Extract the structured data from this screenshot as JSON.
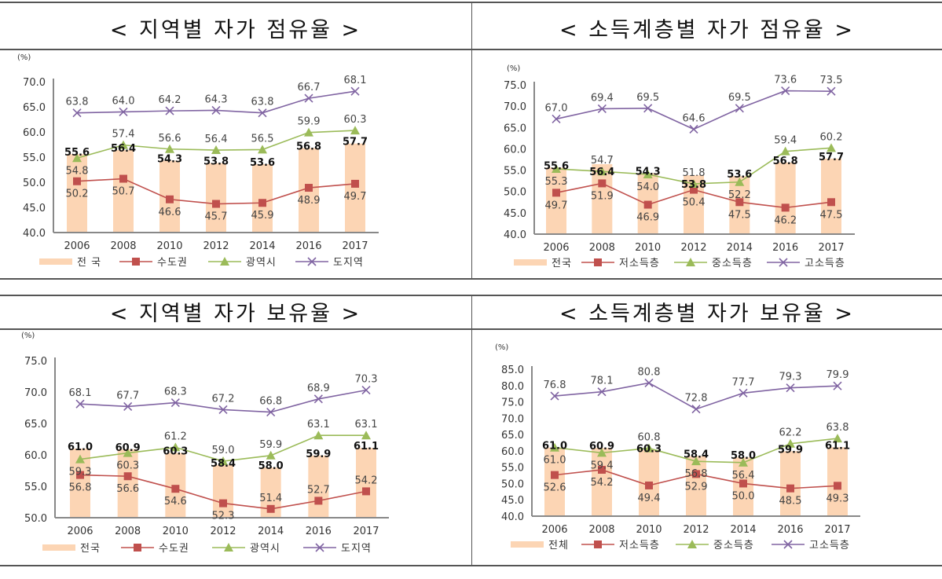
{
  "titles": [
    "< 지역별 자가 점유율 >",
    "< 소득계층별 자가 점유율 >",
    "< 지역별 자가 보유율 >",
    "< 소득계층별 자가 보유율 >"
  ],
  "colors": {
    "bar": "#fcd5b4",
    "red": "#c0504d",
    "green": "#9bbb59",
    "purple": "#8064a2",
    "axis": "#888888"
  },
  "chart_data": [
    {
      "type": "bar+line",
      "title": "< 지역별 자가 점유율 >",
      "ylabel": "(%)",
      "ylim": [
        40,
        70
      ],
      "yticks": [
        "40.0",
        "45.0",
        "50.0",
        "55.0",
        "60.0",
        "65.0",
        "70.0"
      ],
      "categories": [
        "2006",
        "2008",
        "2010",
        "2012",
        "2014",
        "2016",
        "2017"
      ],
      "series": [
        {
          "name": "전 국",
          "kind": "bar",
          "values": [
            55.6,
            56.4,
            54.3,
            53.8,
            53.6,
            56.8,
            57.7
          ]
        },
        {
          "name": "수도권",
          "kind": "line",
          "marker": "square",
          "values": [
            50.2,
            50.7,
            46.6,
            45.7,
            45.9,
            48.9,
            49.7
          ]
        },
        {
          "name": "광역시",
          "kind": "line",
          "marker": "triangle",
          "values": [
            54.8,
            57.4,
            56.6,
            56.4,
            56.5,
            59.9,
            60.3
          ]
        },
        {
          "name": "도지역",
          "kind": "line",
          "marker": "x",
          "values": [
            63.8,
            64.0,
            64.2,
            64.3,
            63.8,
            66.7,
            68.1
          ]
        }
      ],
      "legend": "bottom"
    },
    {
      "type": "bar+line",
      "title": "< 소득계층별 자가 점유율 >",
      "ylabel": "(%)",
      "ylim": [
        40,
        75
      ],
      "yticks": [
        "40.0",
        "45.0",
        "50.0",
        "55.0",
        "60.0",
        "65.0",
        "70.0",
        "75.0"
      ],
      "categories": [
        "2006",
        "2008",
        "2010",
        "2012",
        "2014",
        "2016",
        "2017"
      ],
      "series": [
        {
          "name": "전국",
          "kind": "bar",
          "values": [
            55.6,
            56.4,
            54.3,
            53.8,
            53.6,
            56.8,
            57.7
          ]
        },
        {
          "name": "저소득층",
          "kind": "line",
          "marker": "square",
          "values": [
            49.7,
            51.9,
            46.9,
            50.4,
            47.5,
            46.2,
            47.5
          ]
        },
        {
          "name": "중소득층",
          "kind": "line",
          "marker": "triangle",
          "values": [
            55.3,
            54.7,
            54.0,
            51.8,
            52.2,
            59.4,
            60.2
          ]
        },
        {
          "name": "고소득층",
          "kind": "line",
          "marker": "x",
          "values": [
            67.0,
            69.4,
            69.5,
            64.6,
            69.5,
            73.6,
            73.5
          ]
        }
      ],
      "legend": "bottom"
    },
    {
      "type": "bar+line",
      "title": "< 지역별 자가 보유율 >",
      "ylabel": "(%)",
      "ylim": [
        50,
        75
      ],
      "yticks": [
        "50.0",
        "55.0",
        "60.0",
        "65.0",
        "70.0",
        "75.0"
      ],
      "categories": [
        "2006",
        "2008",
        "2010",
        "2012",
        "2014",
        "2016",
        "2017"
      ],
      "series": [
        {
          "name": "전국",
          "kind": "bar",
          "values": [
            61.0,
            60.9,
            60.3,
            58.4,
            58.0,
            59.9,
            61.1
          ]
        },
        {
          "name": "수도권",
          "kind": "line",
          "marker": "square",
          "values": [
            56.8,
            56.6,
            54.6,
            52.3,
            51.4,
            52.7,
            54.2
          ]
        },
        {
          "name": "광역시",
          "kind": "line",
          "marker": "triangle",
          "values": [
            59.3,
            60.3,
            61.2,
            59.0,
            59.9,
            63.1,
            63.1
          ]
        },
        {
          "name": "도지역",
          "kind": "line",
          "marker": "x",
          "values": [
            68.1,
            67.7,
            68.3,
            67.2,
            66.8,
            68.9,
            70.3
          ]
        }
      ],
      "legend": "bottom"
    },
    {
      "type": "bar+line",
      "title": "< 소득계층별 자가 보유율 >",
      "ylabel": "(%)",
      "ylim": [
        40,
        85
      ],
      "yticks": [
        "40.0",
        "45.0",
        "50.0",
        "55.0",
        "60.0",
        "65.0",
        "70.0",
        "75.0",
        "80.0",
        "85.0"
      ],
      "categories": [
        "2006",
        "2008",
        "2010",
        "2012",
        "2014",
        "2016",
        "2017"
      ],
      "series": [
        {
          "name": "전체",
          "kind": "bar",
          "values": [
            61.0,
            60.9,
            60.3,
            58.4,
            58.0,
            59.9,
            61.1
          ]
        },
        {
          "name": "저소득층",
          "kind": "line",
          "marker": "square",
          "values": [
            52.6,
            54.2,
            49.4,
            52.9,
            50.0,
            48.5,
            49.3
          ]
        },
        {
          "name": "중소득층",
          "kind": "line",
          "marker": "triangle",
          "values": [
            61.0,
            59.4,
            60.8,
            56.8,
            56.4,
            62.2,
            63.8
          ]
        },
        {
          "name": "고소득층",
          "kind": "line",
          "marker": "x",
          "values": [
            76.8,
            78.1,
            80.8,
            72.8,
            77.7,
            79.3,
            79.9
          ]
        }
      ],
      "legend": "bottom"
    }
  ]
}
